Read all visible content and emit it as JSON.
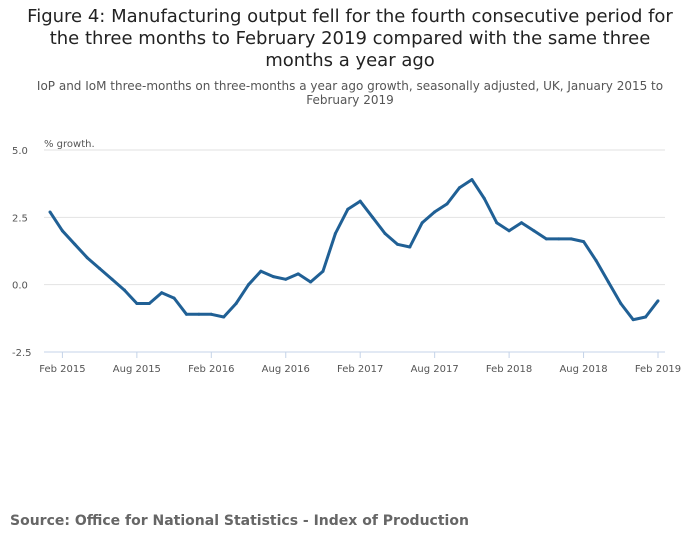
{
  "chart_data": {
    "type": "line",
    "title": "Figure 4: Manufacturing output fell for the fourth consecutive period for the three months to February 2019 compared with the same three months a year ago",
    "subtitle": "IoP and IoM three-months on three-months a year ago growth, seasonally adjusted, UK, January 2015 to February 2019",
    "ylabel": "% growth.",
    "xlabel": "",
    "ylim": [
      -2.5,
      5.0
    ],
    "yticks": [
      "5.0",
      "2.5",
      "0.0",
      "-2.5"
    ],
    "xticks": [
      "Feb 2015",
      "Aug 2015",
      "Feb 2016",
      "Aug 2016",
      "Feb 2017",
      "Aug 2017",
      "Feb 2018",
      "Aug 2018",
      "Feb 2019"
    ],
    "grid": true,
    "color": "#206095",
    "x_start": "Jan 2015",
    "x_end": "Feb 2019",
    "values": [
      2.7,
      2.0,
      1.5,
      1.0,
      0.6,
      0.2,
      -0.2,
      -0.7,
      -0.7,
      -0.3,
      -0.5,
      -1.1,
      -1.1,
      -1.1,
      -1.2,
      -0.7,
      0.0,
      0.5,
      0.3,
      0.2,
      0.4,
      0.1,
      0.5,
      1.9,
      2.8,
      3.1,
      2.5,
      1.9,
      1.5,
      1.4,
      2.3,
      2.7,
      3.0,
      3.6,
      3.9,
      3.2,
      2.3,
      2.0,
      2.3,
      2.0,
      1.7,
      1.7,
      1.7,
      1.6,
      0.9,
      0.1,
      -0.7,
      -1.3,
      -1.2,
      -0.6
    ]
  },
  "source": "Source: Office for National Statistics - Index of Production"
}
